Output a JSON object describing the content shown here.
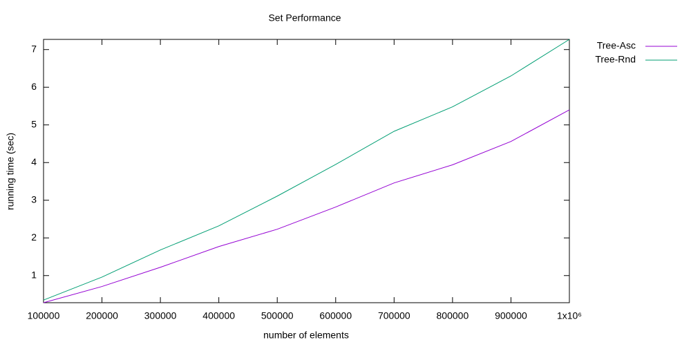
{
  "chart_data": {
    "type": "line",
    "title": "Set Performance",
    "x_label": "number of elements",
    "y_label": "running time (sec)",
    "x": [
      100000,
      200000,
      300000,
      400000,
      500000,
      600000,
      700000,
      800000,
      900000,
      1000000
    ],
    "series": [
      {
        "name": "Tree-Asc",
        "color": "#9400d3",
        "values": [
          0.28,
          0.71,
          1.22,
          1.77,
          2.23,
          2.82,
          3.46,
          3.94,
          4.56,
          5.4
        ]
      },
      {
        "name": "Tree-Rnd",
        "color": "#009e73",
        "values": [
          0.35,
          0.96,
          1.68,
          2.32,
          3.11,
          3.95,
          4.83,
          5.48,
          6.3,
          7.27
        ]
      }
    ],
    "xlim": [
      100000,
      1000000
    ],
    "xticks": [
      100000,
      200000,
      300000,
      400000,
      500000,
      600000,
      700000,
      800000,
      900000,
      {
        "value": 1000000,
        "label": "1x10⁶"
      }
    ],
    "ylim": [
      0.28,
      7.27
    ],
    "yticks": [
      1,
      2,
      3,
      4,
      5,
      6,
      7
    ],
    "grid": false,
    "legend": "outside-top-right"
  }
}
